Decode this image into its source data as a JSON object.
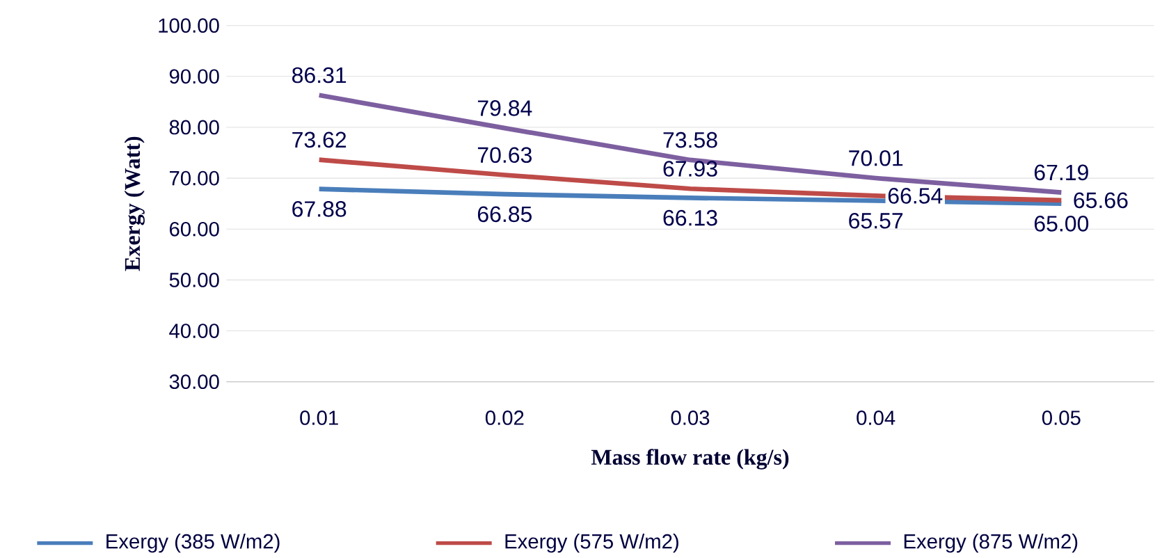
{
  "chart_data": {
    "type": "line",
    "xlabel": "Mass flow rate (kg/s)",
    "ylabel": "Exergy (Watt)",
    "categories": [
      "0.01",
      "0.02",
      "0.03",
      "0.04",
      "0.05"
    ],
    "series": [
      {
        "name": "Exergy (385 W/m2)",
        "color": "#4a7ebb",
        "values": [
          67.88,
          66.85,
          66.13,
          65.57,
          65.0
        ],
        "value_labels": [
          "67.88",
          "66.85",
          "66.13",
          "65.57",
          "65.00"
        ]
      },
      {
        "name": "Exergy (575 W/m2)",
        "color": "#be4b48",
        "values": [
          73.62,
          70.63,
          67.93,
          66.54,
          65.66
        ],
        "value_labels": [
          "73.62",
          "70.63",
          "67.93",
          "66.54",
          "65.66"
        ]
      },
      {
        "name": "Exergy (875 W/m2)",
        "color": "#7d5fa0",
        "values": [
          86.31,
          79.84,
          73.58,
          70.01,
          67.19
        ],
        "value_labels": [
          "86.31",
          "79.84",
          "73.58",
          "70.01",
          "67.19"
        ]
      }
    ],
    "ylim": [
      30,
      100
    ],
    "yticks": [
      {
        "value": 30,
        "label": "30.00"
      },
      {
        "value": 40,
        "label": "40.00"
      },
      {
        "value": 50,
        "label": "50.00"
      },
      {
        "value": 60,
        "label": "60.00"
      },
      {
        "value": 70,
        "label": "70.00"
      },
      {
        "value": 80,
        "label": "80.00"
      },
      {
        "value": 90,
        "label": "90.00"
      },
      {
        "value": 100,
        "label": "100.00"
      }
    ],
    "grid": "y",
    "legend": "bottom",
    "marker": "none",
    "line_style": "solid"
  }
}
